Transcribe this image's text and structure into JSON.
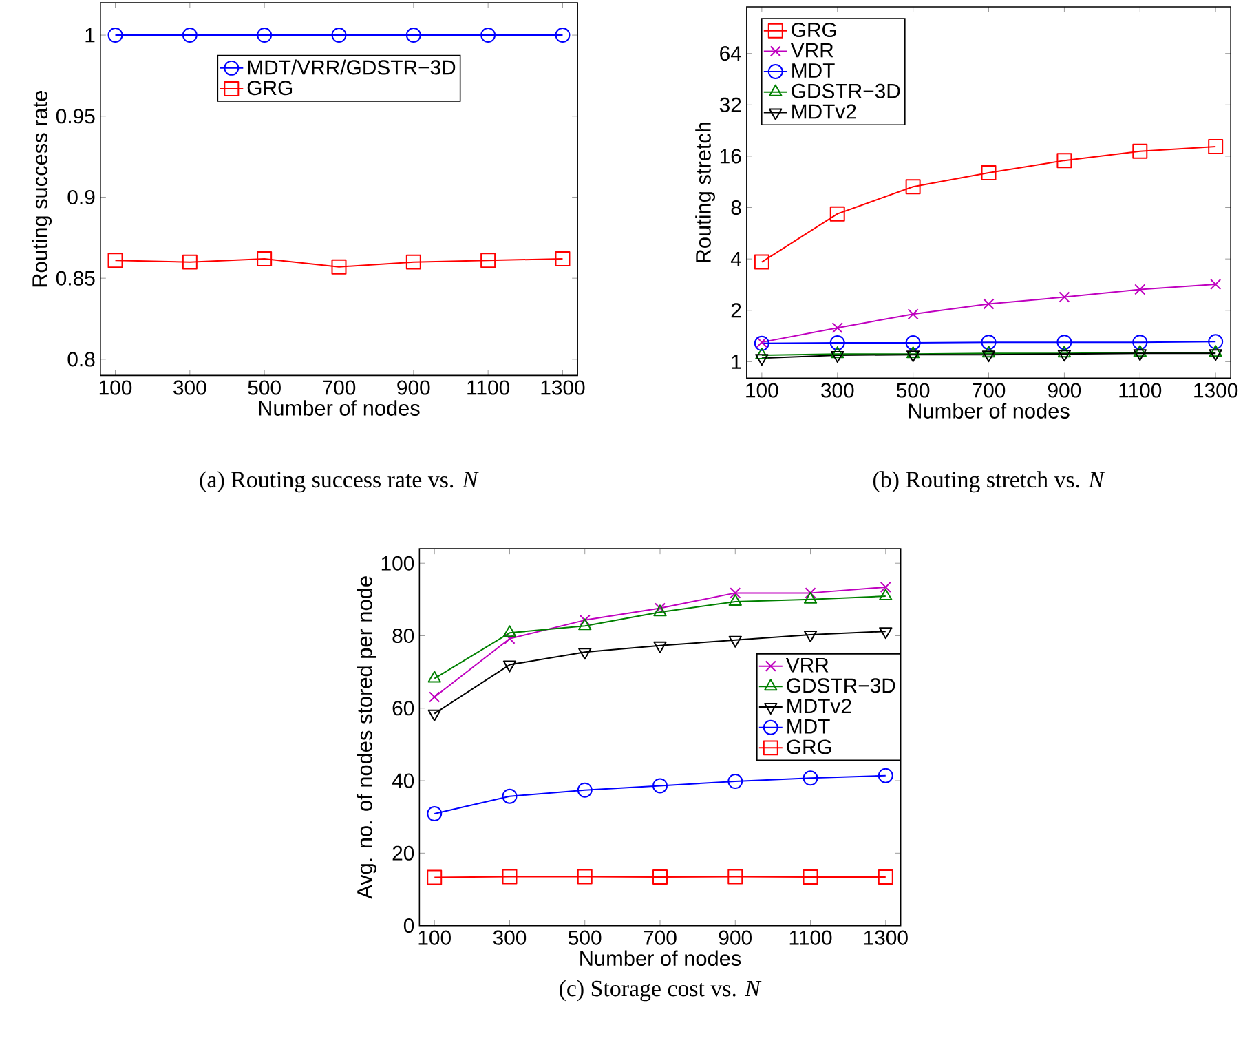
{
  "chart_data": [
    {
      "type": "line",
      "title": "(a) Routing success rate vs. *N*",
      "xlabel": "Number of nodes",
      "ylabel": "Routing success rate",
      "x": [
        100,
        300,
        500,
        700,
        900,
        1100,
        1300
      ],
      "xlim": [
        60,
        1340
      ],
      "xticks": [
        100,
        300,
        500,
        700,
        900,
        1100,
        1300
      ],
      "ylim": [
        0.79,
        1.02
      ],
      "yticks": [
        0.8,
        0.85,
        0.9,
        0.95,
        1
      ],
      "legend": "top",
      "series": [
        {
          "name": "MDT/VRR/GDSTR−3D",
          "color": "#0000ff",
          "marker": "circle",
          "values": [
            1,
            1,
            1,
            1,
            1,
            1,
            1
          ]
        },
        {
          "name": "GRG",
          "color": "#ff0000",
          "marker": "square",
          "values": [
            0.861,
            0.86,
            0.862,
            0.857,
            0.86,
            0.861,
            0.862
          ]
        }
      ]
    },
    {
      "type": "line",
      "title": "(b) Routing stretch vs. *N*",
      "xlabel": "Number of nodes",
      "ylabel": "Routing stretch",
      "log": "y",
      "x": [
        100,
        300,
        500,
        700,
        900,
        1100,
        1300
      ],
      "xlim": [
        60,
        1340
      ],
      "xticks": [
        100,
        300,
        500,
        700,
        900,
        1100,
        1300
      ],
      "ylim": [
        0.8,
        120
      ],
      "yticks": [
        1,
        2,
        4,
        8,
        16,
        32,
        64
      ],
      "legend": "top left",
      "series": [
        {
          "name": "GRG",
          "color": "#ff0000",
          "marker": "square",
          "values": [
            3.84,
            7.35,
            10.6,
            12.8,
            15.1,
            17.1,
            18.2
          ]
        },
        {
          "name": "VRR",
          "color": "#bf00bf",
          "marker": "cross",
          "values": [
            1.3,
            1.58,
            1.9,
            2.18,
            2.39,
            2.65,
            2.84
          ]
        },
        {
          "name": "MDT",
          "color": "#0000ff",
          "marker": "circle",
          "values": [
            1.28,
            1.29,
            1.29,
            1.3,
            1.3,
            1.3,
            1.31
          ]
        },
        {
          "name": "GDSTR−3D",
          "color": "#008000",
          "marker": "triangle",
          "values": [
            1.09,
            1.11,
            1.11,
            1.12,
            1.12,
            1.13,
            1.13
          ]
        },
        {
          "name": "MDTv2",
          "color": "#000000",
          "marker": "triangle down",
          "values": [
            1.05,
            1.09,
            1.1,
            1.1,
            1.11,
            1.12,
            1.12
          ]
        }
      ]
    },
    {
      "type": "line",
      "title": "(c) Storage cost vs. *N*",
      "xlabel": "Number of nodes",
      "ylabel": "Avg. no. of nodes stored per node",
      "x": [
        100,
        300,
        500,
        700,
        900,
        1100,
        1300
      ],
      "xlim": [
        60,
        1340
      ],
      "xticks": [
        100,
        300,
        500,
        700,
        900,
        1100,
        1300
      ],
      "ylim": [
        0,
        104
      ],
      "yticks": [
        0,
        20,
        40,
        60,
        80,
        100
      ],
      "legend": "right",
      "series": [
        {
          "name": "VRR",
          "color": "#bf00bf",
          "marker": "cross",
          "values": [
            63.1,
            79.2,
            84.3,
            87.6,
            91.8,
            91.8,
            93.4
          ]
        },
        {
          "name": "GDSTR−3D",
          "color": "#008000",
          "marker": "triangle",
          "values": [
            68.2,
            80.8,
            82.7,
            86.5,
            89.4,
            90.0,
            90.9
          ]
        },
        {
          "name": "MDTv2",
          "color": "#000000",
          "marker": "triangle down",
          "values": [
            58.5,
            72.0,
            75.5,
            77.3,
            78.8,
            80.3,
            81.2
          ]
        },
        {
          "name": "MDT",
          "color": "#0000ff",
          "marker": "circle",
          "values": [
            30.9,
            35.7,
            37.4,
            38.6,
            39.8,
            40.7,
            41.4
          ]
        },
        {
          "name": "GRG",
          "color": "#ff0000",
          "marker": "square",
          "values": [
            13.3,
            13.5,
            13.5,
            13.4,
            13.5,
            13.4,
            13.4
          ]
        }
      ]
    }
  ]
}
